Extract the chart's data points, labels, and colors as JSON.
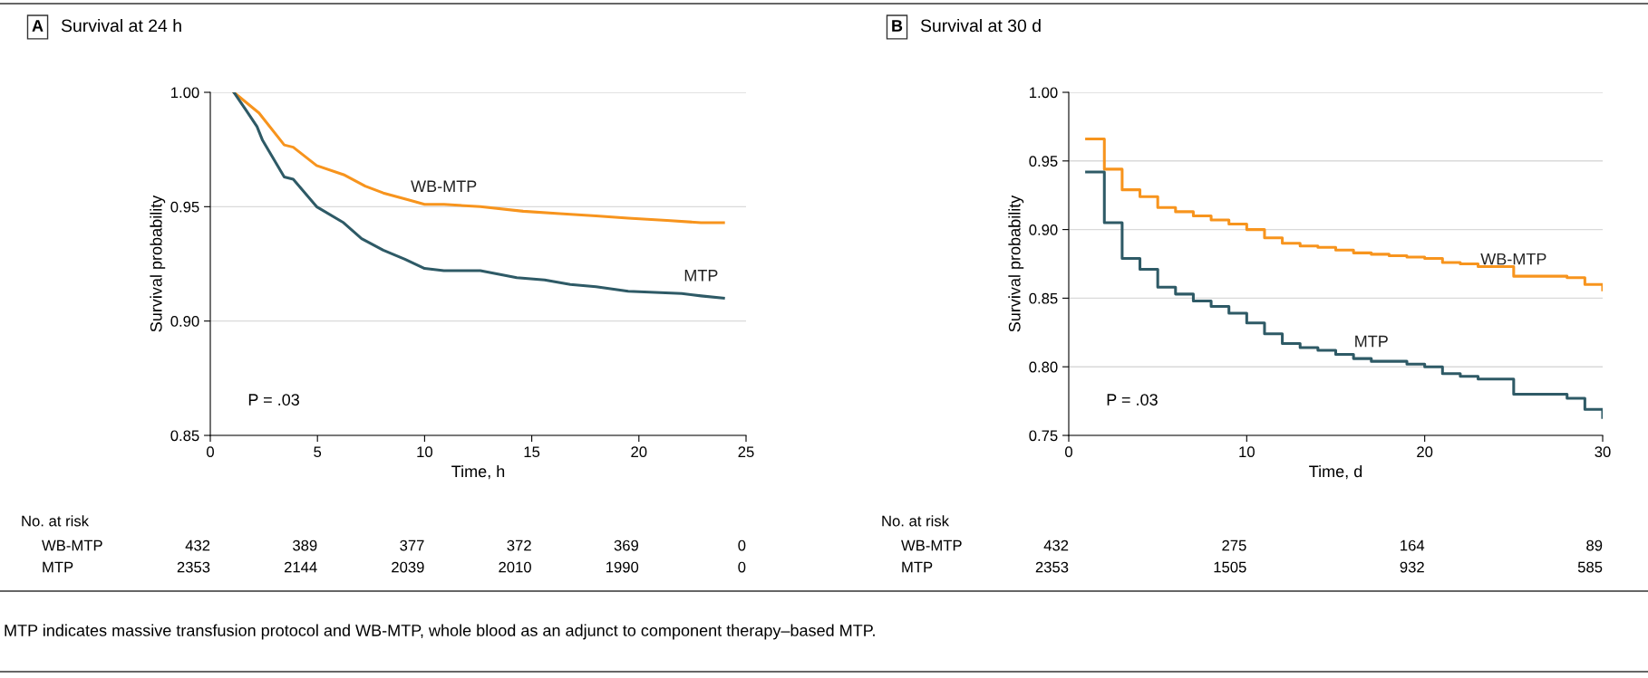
{
  "chart_data": [
    {
      "type": "line",
      "title": "A Survival at 24 h",
      "xlabel": "Time, h",
      "ylabel": "Survival probability",
      "xlim": [
        0,
        25
      ],
      "xticks": [
        0,
        5,
        10,
        15,
        20,
        25
      ],
      "ylim": [
        0.85,
        1.0
      ],
      "yticks": [
        {
          "value": 0.85,
          "label": "0.85"
        },
        {
          "value": 0.9,
          "label": "0.90"
        },
        {
          "value": 0.95,
          "label": "0.95"
        },
        {
          "value": 1.0,
          "label": "1.00"
        }
      ],
      "grid": "y",
      "legend": false,
      "series": [
        {
          "name": "WB-MTP",
          "color": "#f7941d",
          "x": [
            1.1,
            2.27,
            3.45,
            3.87,
            4.96,
            6.22,
            7.23,
            8.07,
            9.24,
            10.0,
            10.9,
            12.6,
            14.6,
            16.3,
            18.0,
            19.5,
            21.3,
            22.9,
            23.95
          ],
          "values": [
            1.0,
            0.991,
            0.977,
            0.976,
            0.968,
            0.964,
            0.959,
            0.956,
            0.953,
            0.951,
            0.951,
            0.95,
            0.948,
            0.947,
            0.946,
            0.945,
            0.944,
            0.943,
            0.943
          ]
        },
        {
          "name": "MTP",
          "color": "#2e5a66",
          "x": [
            1.1,
            1.68,
            2.18,
            2.44,
            3.45,
            3.87,
            4.96,
            6.22,
            7.06,
            8.07,
            9.08,
            10.0,
            10.9,
            12.6,
            14.3,
            15.6,
            16.8,
            18.0,
            19.5,
            22.0,
            22.9,
            23.95
          ],
          "values": [
            1.0,
            0.992,
            0.985,
            0.979,
            0.963,
            0.962,
            0.95,
            0.943,
            0.936,
            0.931,
            0.927,
            0.923,
            0.922,
            0.922,
            0.919,
            0.918,
            0.916,
            0.915,
            0.913,
            0.912,
            0.911,
            0.91
          ]
        }
      ],
      "annotations": [
        "P = .03",
        "No. at risk",
        "WB-MTP",
        "432",
        "389",
        "377",
        "372",
        "369",
        "0",
        "MTP",
        "2353",
        "2144",
        "2039",
        "2010",
        "1990",
        "0",
        "MTP indicates massive transfusion protocol and WB-MTP, whole blood as an adjunct to component therapy–based MTP."
      ]
    },
    {
      "type": "step",
      "title": "B Survival at 30 d",
      "xlabel": "Time, d",
      "ylabel": "Survival probability",
      "xlim": [
        0,
        30
      ],
      "xticks": [
        0,
        10,
        20,
        30
      ],
      "ylim": [
        0.75,
        1.0
      ],
      "yticks": [
        {
          "value": 0.75,
          "label": "0.75"
        },
        {
          "value": 0.8,
          "label": "0.80"
        },
        {
          "value": 0.85,
          "label": "0.85"
        },
        {
          "value": 0.9,
          "label": "0.90"
        },
        {
          "value": 0.95,
          "label": "0.95"
        },
        {
          "value": 1.0,
          "label": "1.00"
        }
      ],
      "grid": "y",
      "legend": false,
      "series": [
        {
          "name": "WB-MTP",
          "color": "#f7941d",
          "x": [
            1,
            2,
            3,
            4,
            5,
            6,
            7,
            8,
            9,
            10,
            11,
            12,
            13,
            14,
            15,
            16,
            17,
            18,
            19,
            20,
            21,
            22,
            23,
            24,
            25,
            26,
            27,
            28,
            29,
            30
          ],
          "values": [
            0.966,
            0.944,
            0.929,
            0.924,
            0.916,
            0.913,
            0.91,
            0.907,
            0.904,
            0.9,
            0.894,
            0.89,
            0.888,
            0.887,
            0.885,
            0.883,
            0.882,
            0.881,
            0.88,
            0.879,
            0.876,
            0.875,
            0.873,
            0.873,
            0.866,
            0.866,
            0.866,
            0.865,
            0.86,
            0.856
          ]
        },
        {
          "name": "MTP",
          "color": "#2e5a66",
          "x": [
            1,
            2,
            3,
            4,
            5,
            6,
            7,
            8,
            9,
            10,
            11,
            12,
            13,
            14,
            15,
            16,
            17,
            18,
            19,
            20,
            21,
            22,
            23,
            24,
            25,
            26,
            27,
            28,
            29,
            30
          ],
          "values": [
            0.942,
            0.905,
            0.879,
            0.871,
            0.858,
            0.853,
            0.848,
            0.844,
            0.839,
            0.832,
            0.824,
            0.817,
            0.814,
            0.812,
            0.809,
            0.806,
            0.804,
            0.804,
            0.802,
            0.8,
            0.795,
            0.793,
            0.791,
            0.791,
            0.78,
            0.78,
            0.78,
            0.777,
            0.769,
            0.763
          ]
        }
      ],
      "annotations": [
        "P = .03",
        "No. at risk",
        "WB-MTP",
        "432",
        "275",
        "164",
        "89",
        "MTP",
        "2353",
        "1505",
        "932",
        "585"
      ]
    }
  ]
}
